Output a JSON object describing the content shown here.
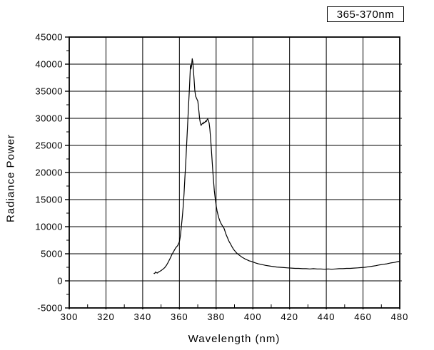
{
  "figure": {
    "background": "#ffffff",
    "axis_color": "#000000",
    "grid_color": "#000000",
    "line_color": "#000000",
    "legend_label": "365-370nm"
  },
  "chart_data": {
    "type": "line",
    "title": "",
    "xlabel": "Wavelength (nm)",
    "ylabel": "Radiance Power",
    "xlim": [
      300,
      480
    ],
    "ylim": [
      -5000,
      45000
    ],
    "x_ticks": [
      300,
      320,
      340,
      360,
      380,
      400,
      420,
      440,
      460,
      480
    ],
    "y_ticks": [
      -5000,
      0,
      5000,
      10000,
      15000,
      20000,
      25000,
      30000,
      35000,
      40000,
      45000
    ],
    "x_minor_step": 10,
    "y_minor_step": 2500,
    "grid": true,
    "legend_position": "top-right-outside",
    "series": [
      {
        "name": "365-370nm",
        "color": "#000000",
        "points": [
          [
            346,
            1400
          ],
          [
            346.5,
            1350
          ],
          [
            347,
            1650
          ],
          [
            347.5,
            1500
          ],
          [
            348,
            1450
          ],
          [
            348.5,
            1600
          ],
          [
            349,
            1700
          ],
          [
            350,
            1900
          ],
          [
            351,
            2150
          ],
          [
            352,
            2450
          ],
          [
            353,
            2900
          ],
          [
            354,
            3500
          ],
          [
            355,
            4200
          ],
          [
            356,
            4900
          ],
          [
            357,
            5500
          ],
          [
            358,
            6100
          ],
          [
            359,
            6500
          ],
          [
            360,
            7200
          ],
          [
            360.5,
            8200
          ],
          [
            361,
            9800
          ],
          [
            361.5,
            11500
          ],
          [
            362,
            13500
          ],
          [
            362.5,
            16000
          ],
          [
            363,
            19000
          ],
          [
            363.5,
            22000
          ],
          [
            364,
            25500
          ],
          [
            364.5,
            29000
          ],
          [
            365,
            32500
          ],
          [
            365.5,
            35800
          ],
          [
            366,
            39800
          ],
          [
            366.3,
            39100
          ],
          [
            366.6,
            39600
          ],
          [
            367,
            41000
          ],
          [
            367.3,
            40400
          ],
          [
            367.6,
            39000
          ],
          [
            368,
            37200
          ],
          [
            368.4,
            35200
          ],
          [
            368.8,
            34100
          ],
          [
            369.2,
            33800
          ],
          [
            369.6,
            33500
          ],
          [
            370,
            33200
          ],
          [
            370.3,
            32400
          ],
          [
            370.7,
            31000
          ],
          [
            371,
            30000
          ],
          [
            371.4,
            29100
          ],
          [
            371.8,
            28700
          ],
          [
            372.2,
            28900
          ],
          [
            372.6,
            29100
          ],
          [
            373,
            29000
          ],
          [
            373.4,
            29300
          ],
          [
            373.8,
            29200
          ],
          [
            374.2,
            29500
          ],
          [
            374.6,
            29400
          ],
          [
            375,
            29700
          ],
          [
            375.4,
            29900
          ],
          [
            375.8,
            29600
          ],
          [
            376.2,
            29100
          ],
          [
            376.6,
            28000
          ],
          [
            377,
            26200
          ],
          [
            377.4,
            24300
          ],
          [
            377.8,
            22300
          ],
          [
            378.2,
            20300
          ],
          [
            378.6,
            18400
          ],
          [
            379,
            16700
          ],
          [
            379.5,
            15200
          ],
          [
            380,
            13900
          ],
          [
            380.5,
            12900
          ],
          [
            381,
            12200
          ],
          [
            381.5,
            11600
          ],
          [
            382,
            11100
          ],
          [
            382.5,
            10700
          ],
          [
            383,
            10400
          ],
          [
            383.5,
            10100
          ],
          [
            384,
            9900
          ],
          [
            384.5,
            9500
          ],
          [
            385,
            9000
          ],
          [
            385.5,
            8500
          ],
          [
            386,
            8100
          ],
          [
            386.5,
            7700
          ],
          [
            387,
            7300
          ],
          [
            387.5,
            7000
          ],
          [
            388,
            6700
          ],
          [
            388.5,
            6400
          ],
          [
            389,
            6100
          ],
          [
            389.5,
            5800
          ],
          [
            390,
            5600
          ],
          [
            391,
            5200
          ],
          [
            392,
            4900
          ],
          [
            393,
            4650
          ],
          [
            394,
            4400
          ],
          [
            395,
            4200
          ],
          [
            396,
            4000
          ],
          [
            397,
            3850
          ],
          [
            398,
            3700
          ],
          [
            399,
            3600
          ],
          [
            400,
            3500
          ],
          [
            401.5,
            3300
          ],
          [
            403,
            3150
          ],
          [
            405,
            3000
          ],
          [
            407,
            2850
          ],
          [
            409,
            2750
          ],
          [
            411,
            2650
          ],
          [
            413,
            2550
          ],
          [
            415,
            2500
          ],
          [
            417,
            2450
          ],
          [
            419,
            2400
          ],
          [
            421,
            2350
          ],
          [
            423,
            2300
          ],
          [
            425,
            2300
          ],
          [
            427,
            2250
          ],
          [
            429,
            2250
          ],
          [
            431,
            2200
          ],
          [
            433,
            2250
          ],
          [
            435,
            2200
          ],
          [
            437,
            2200
          ],
          [
            439,
            2150
          ],
          [
            441,
            2200
          ],
          [
            443,
            2150
          ],
          [
            445,
            2200
          ],
          [
            447,
            2250
          ],
          [
            449,
            2250
          ],
          [
            451,
            2300
          ],
          [
            453,
            2300
          ],
          [
            455,
            2350
          ],
          [
            457,
            2400
          ],
          [
            459,
            2450
          ],
          [
            461,
            2500
          ],
          [
            463,
            2600
          ],
          [
            465,
            2700
          ],
          [
            467,
            2800
          ],
          [
            469,
            2950
          ],
          [
            471,
            3050
          ],
          [
            473,
            3150
          ],
          [
            475,
            3300
          ],
          [
            477,
            3400
          ],
          [
            479,
            3550
          ],
          [
            480,
            3600
          ]
        ]
      }
    ]
  }
}
